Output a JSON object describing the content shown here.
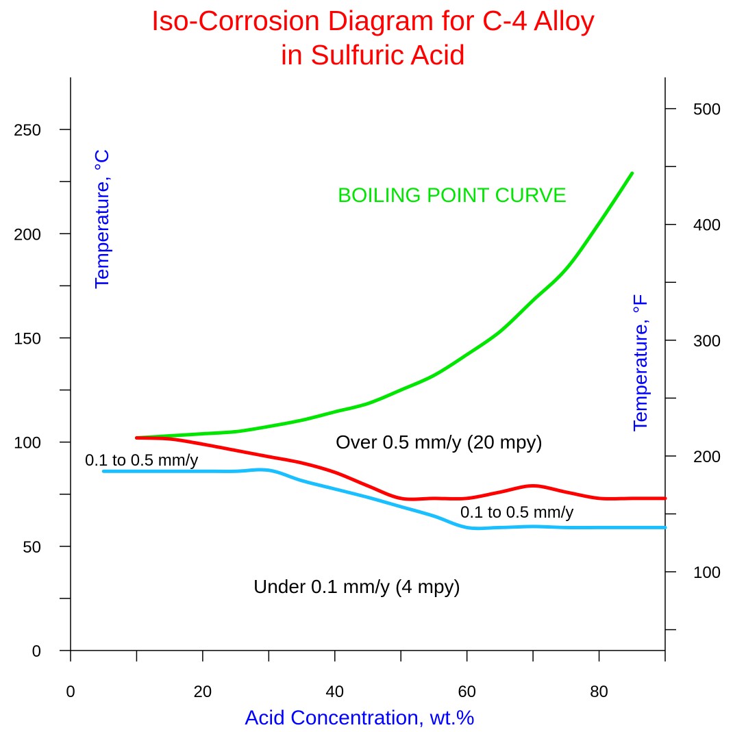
{
  "title": {
    "line1": "Iso-Corrosion Diagram for C-4 Alloy",
    "line2": "in Sulfuric Acid"
  },
  "chart_data": {
    "type": "line",
    "title": "Iso-Corrosion Diagram for C-4 Alloy in Sulfuric Acid",
    "xlabel": "Acid Concentration, wt.%",
    "ylabel": "Temperature, °C",
    "y2label": "Temperature, °F",
    "xlim": [
      0,
      90
    ],
    "ylim": [
      0,
      275
    ],
    "y2lim": [
      32,
      527
    ],
    "x_ticks": [
      0,
      20,
      40,
      60,
      80
    ],
    "x_minor_ticks": [
      10,
      30,
      50,
      70,
      90
    ],
    "y_ticks": [
      0,
      50,
      100,
      150,
      200,
      250
    ],
    "y_minor_ticks": [
      25,
      75,
      125,
      175,
      225
    ],
    "y2_ticks": [
      100,
      200,
      300,
      400,
      500
    ],
    "y2_minor_ticks": [
      50,
      150,
      250,
      350,
      450
    ],
    "grid": false,
    "series": [
      {
        "name": "BOILING POINT CURVE",
        "color": "#00e600",
        "x": [
          10,
          15,
          20,
          25,
          30,
          35,
          40,
          45,
          50,
          55,
          60,
          65,
          70,
          75,
          80,
          85
        ],
        "y": [
          102,
          103,
          104,
          105,
          107.5,
          110.5,
          114.5,
          118.5,
          125,
          132,
          142,
          153,
          168,
          183,
          205,
          229
        ]
      },
      {
        "name": "0.5 mm/y",
        "color": "#ff0000",
        "x": [
          10,
          15,
          20,
          25,
          30,
          35,
          40,
          45,
          50,
          55,
          60,
          65,
          70,
          75,
          80,
          85,
          90
        ],
        "y": [
          102,
          101.5,
          99,
          96,
          93,
          90,
          85.5,
          79,
          73,
          73,
          73,
          76,
          79,
          76,
          73,
          73,
          73
        ]
      },
      {
        "name": "0.1 mm/y",
        "color": "#19bfff",
        "x": [
          5,
          10,
          15,
          20,
          25,
          30,
          35,
          40,
          45,
          50,
          55,
          60,
          65,
          70,
          75,
          80,
          85,
          90
        ],
        "y": [
          86,
          86,
          86,
          86,
          86,
          86.5,
          81.5,
          77.5,
          73.5,
          69,
          64.5,
          59,
          59,
          59.5,
          59,
          59,
          59,
          59
        ]
      }
    ],
    "annotations": [
      {
        "text": "BOILING POINT CURVE",
        "color": "#00e600"
      },
      {
        "text": "Over 0.5 mm/y (20 mpy)",
        "color": "#000000"
      },
      {
        "text": "0.1 to 0.5 mm/y",
        "color": "#000000"
      },
      {
        "text": "0.1 to 0.5 mm/y",
        "color": "#000000"
      },
      {
        "text": "Under 0.1 mm/y (4 mpy)",
        "color": "#000000"
      }
    ],
    "label_color": "#0000ff"
  }
}
